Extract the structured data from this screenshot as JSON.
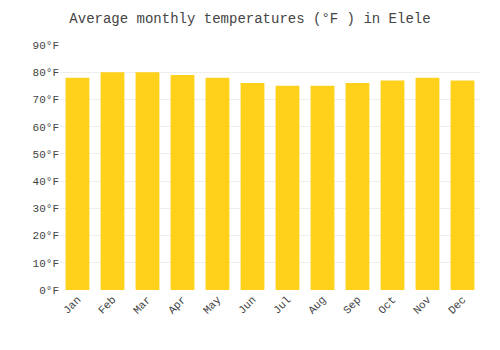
{
  "chart_data": {
    "type": "bar",
    "title": "Average monthly temperatures (°F ) in Elele",
    "categories": [
      "Jan",
      "Feb",
      "Mar",
      "Apr",
      "May",
      "Jun",
      "Jul",
      "Aug",
      "Sep",
      "Oct",
      "Nov",
      "Dec"
    ],
    "values": [
      78,
      80,
      80,
      79,
      78,
      76,
      75,
      75,
      76,
      77,
      78,
      77
    ],
    "color": "#FFD11A",
    "ylim": [
      0,
      90
    ],
    "yticks": [
      {
        "value": 0,
        "label": "0°F"
      },
      {
        "value": 10,
        "label": "10°F"
      },
      {
        "value": 20,
        "label": "20°F"
      },
      {
        "value": 30,
        "label": "30°F"
      },
      {
        "value": 40,
        "label": "40°F"
      },
      {
        "value": 50,
        "label": "50°F"
      },
      {
        "value": 60,
        "label": "60°F"
      },
      {
        "value": 70,
        "label": "70°F"
      },
      {
        "value": 80,
        "label": "80°F"
      },
      {
        "value": 90,
        "label": "90°F"
      }
    ],
    "grid": true
  }
}
